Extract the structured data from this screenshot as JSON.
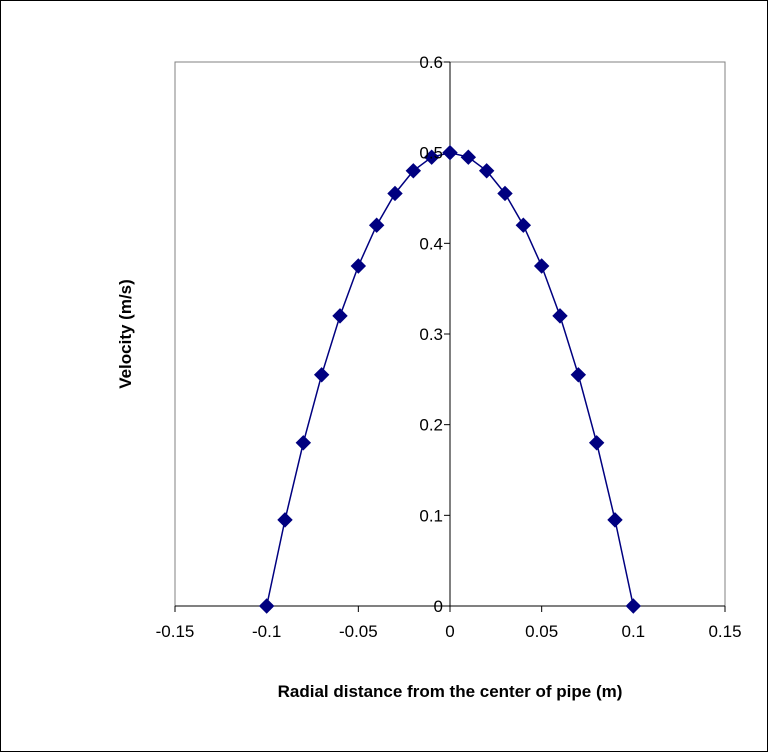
{
  "chart_data": {
    "type": "scatter",
    "title": "",
    "xlabel": "Radial distance from the center of pipe (m)",
    "ylabel": "Velocity (m/s)",
    "xlim": [
      -0.15,
      0.15
    ],
    "ylim": [
      0,
      0.6
    ],
    "x_ticks": [
      -0.15,
      -0.1,
      -0.05,
      0,
      0.05,
      0.1,
      0.15
    ],
    "y_ticks": [
      0,
      0.1,
      0.2,
      0.3,
      0.4,
      0.5,
      0.6
    ],
    "x_tick_labels": [
      "-0.15",
      "-0.1",
      "-0.05",
      "0",
      "0.05",
      "0.1",
      "0.15"
    ],
    "y_tick_labels": [
      "0",
      "0.1",
      "0.2",
      "0.3",
      "0.4",
      "0.5",
      "0.6"
    ],
    "grid": false,
    "legend": "none",
    "marker": "diamond",
    "series_color": "#000080",
    "series": [
      {
        "x": [
          -0.1,
          -0.09,
          -0.08,
          -0.07,
          -0.06,
          -0.05,
          -0.04,
          -0.03,
          -0.02,
          -0.01,
          0,
          0.01,
          0.02,
          0.03,
          0.04,
          0.05,
          0.06,
          0.07,
          0.08,
          0.09,
          0.1
        ],
        "values": [
          0,
          0.095,
          0.18,
          0.255,
          0.32,
          0.375,
          0.42,
          0.455,
          0.48,
          0.495,
          0.5,
          0.495,
          0.48,
          0.455,
          0.42,
          0.375,
          0.32,
          0.255,
          0.18,
          0.095,
          0
        ]
      }
    ]
  }
}
